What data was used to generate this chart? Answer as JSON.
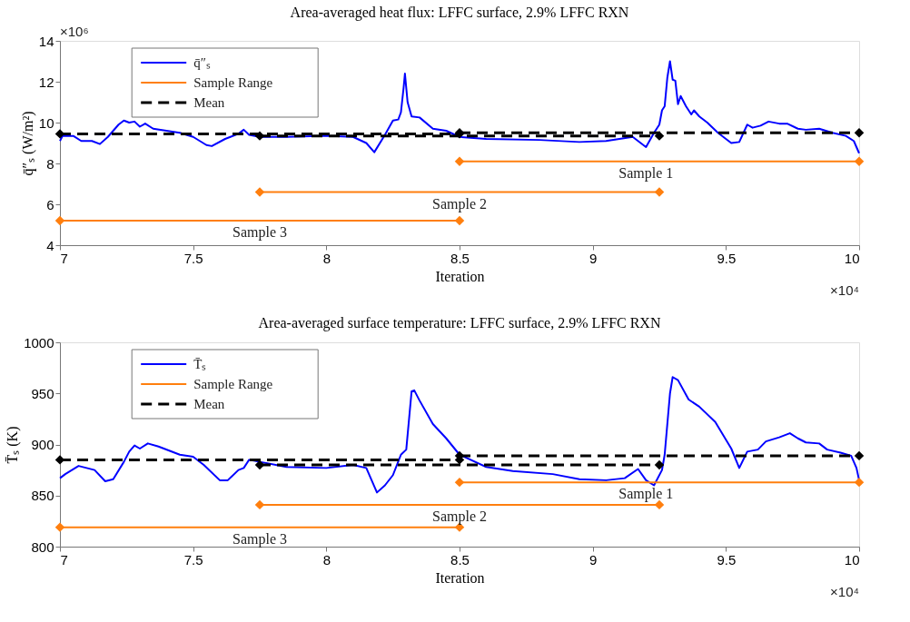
{
  "chart_data": [
    {
      "type": "line",
      "title": "Area-averaged heat flux: LFFC surface, 2.9% LFFC RXN",
      "xlabel": "Iteration",
      "ylabel": "q̄″ₛ (W/m²)",
      "xlim": [
        7,
        10
      ],
      "xticks": [
        7,
        7.5,
        8,
        8.5,
        9,
        9.5,
        10
      ],
      "ylim": [
        4,
        14
      ],
      "yticks": [
        4,
        6,
        8,
        10,
        12,
        14
      ],
      "legend": "top left",
      "annotations": [
        "×10⁶",
        "×10⁴",
        {
          "text": "Sample 1",
          "x": 9.2,
          "y": 8.1
        },
        {
          "text": "Sample 2",
          "x": 8.5,
          "y": 6.6
        },
        {
          "text": "Sample 3",
          "x": 7.75,
          "y": 5.2
        }
      ],
      "series": [
        {
          "name": "q̄″ₛ",
          "color": "#0000ff",
          "marker": "none",
          "line_style": "solid",
          "x": [
            7.0,
            7.01,
            7.05,
            7.08,
            7.12,
            7.15,
            7.18,
            7.22,
            7.24,
            7.26,
            7.28,
            7.3,
            7.32,
            7.35,
            7.45,
            7.5,
            7.55,
            7.57,
            7.62,
            7.67,
            7.69,
            7.71,
            7.75,
            7.85,
            8.0,
            8.1,
            8.15,
            8.18,
            8.22,
            8.25,
            8.27,
            8.28,
            8.29,
            8.295,
            8.305,
            8.32,
            8.35,
            8.4,
            8.45,
            8.5,
            8.6,
            8.8,
            8.95,
            9.05,
            9.15,
            9.2,
            9.23,
            9.25,
            9.26,
            9.27,
            9.28,
            9.29,
            9.3,
            9.31,
            9.32,
            9.33,
            9.35,
            9.37,
            9.38,
            9.4,
            9.43,
            9.47,
            9.52,
            9.55,
            9.58,
            9.6,
            9.63,
            9.66,
            9.7,
            9.73,
            9.77,
            9.8,
            9.85,
            9.9,
            9.95,
            9.98,
            10.0
          ],
          "values": [
            9.1,
            9.35,
            9.35,
            9.1,
            9.1,
            8.95,
            9.3,
            9.9,
            10.1,
            10.0,
            10.05,
            9.8,
            9.95,
            9.7,
            9.5,
            9.3,
            8.9,
            8.85,
            9.2,
            9.45,
            9.65,
            9.4,
            9.3,
            9.3,
            9.35,
            9.3,
            9.0,
            8.55,
            9.4,
            10.1,
            10.15,
            10.5,
            11.7,
            12.4,
            11.0,
            10.3,
            10.25,
            9.7,
            9.6,
            9.3,
            9.2,
            9.15,
            9.05,
            9.1,
            9.3,
            8.8,
            9.5,
            9.9,
            10.6,
            10.8,
            12.2,
            13.0,
            12.1,
            12.05,
            10.9,
            11.3,
            10.8,
            10.4,
            10.6,
            10.3,
            10.0,
            9.5,
            9.0,
            9.05,
            9.9,
            9.75,
            9.85,
            10.05,
            9.95,
            9.95,
            9.7,
            9.65,
            9.7,
            9.5,
            9.35,
            9.1,
            8.5
          ]
        },
        {
          "name": "Sample Range",
          "color": "#ff7f0e",
          "marker": "diamond",
          "line_style": "solid",
          "x": [
            8.5,
            10
          ],
          "values": [
            8.1,
            8.1
          ]
        },
        {
          "color": "#ff7f0e",
          "marker": "diamond",
          "line_style": "solid",
          "x": [
            7.75,
            9.25
          ],
          "values": [
            6.6,
            6.6
          ]
        },
        {
          "color": "#ff7f0e",
          "marker": "diamond",
          "line_style": "solid",
          "x": [
            7,
            8.5
          ],
          "values": [
            5.2,
            5.2
          ]
        },
        {
          "name": "Mean",
          "color": "#000000",
          "marker": "diamond",
          "line_style": "dashed",
          "x": [
            8.5,
            10
          ],
          "values": [
            9.5,
            9.5
          ]
        },
        {
          "color": "#000000",
          "marker": "diamond",
          "line_style": "dashed",
          "x": [
            7.75,
            9.25
          ],
          "values": [
            9.35,
            9.35
          ]
        },
        {
          "color": "#000000",
          "marker": "diamond",
          "line_style": "dashed",
          "x": [
            7,
            8.5
          ],
          "values": [
            9.45,
            9.45
          ]
        }
      ]
    },
    {
      "type": "line",
      "title": "Area-averaged surface temperature: LFFC surface, 2.9% LFFC RXN",
      "xlabel": "Iteration",
      "ylabel": "T̄ₛ (K)",
      "xlim": [
        7,
        10
      ],
      "xticks": [
        7,
        7.5,
        8,
        8.5,
        9,
        9.5,
        10
      ],
      "ylim": [
        800,
        1000
      ],
      "yticks": [
        800,
        850,
        900,
        950,
        1000
      ],
      "legend": "top left",
      "annotations": [
        "×10⁴",
        {
          "text": "Sample 1",
          "x": 9.2,
          "y": 863
        },
        {
          "text": "Sample 2",
          "x": 8.5,
          "y": 841
        },
        {
          "text": "Sample 3",
          "x": 7.75,
          "y": 819
        }
      ],
      "series": [
        {
          "name": "T̄ₛ",
          "color": "#0000ff",
          "marker": "none",
          "line_style": "solid",
          "x": [
            7.0,
            7.02,
            7.07,
            7.1,
            7.13,
            7.17,
            7.2,
            7.24,
            7.26,
            7.28,
            7.3,
            7.33,
            7.37,
            7.45,
            7.5,
            7.54,
            7.6,
            7.63,
            7.67,
            7.69,
            7.71,
            7.75,
            7.85,
            8.0,
            8.1,
            8.15,
            8.19,
            8.22,
            8.25,
            8.28,
            8.3,
            8.32,
            8.33,
            8.35,
            8.4,
            8.45,
            8.5,
            8.6,
            8.7,
            8.85,
            8.95,
            9.05,
            9.12,
            9.17,
            9.2,
            9.23,
            9.26,
            9.27,
            9.29,
            9.3,
            9.32,
            9.36,
            9.4,
            9.46,
            9.52,
            9.55,
            9.58,
            9.62,
            9.65,
            9.7,
            9.74,
            9.77,
            9.8,
            9.85,
            9.88,
            9.93,
            9.97,
            9.99,
            10.0
          ],
          "values": [
            867,
            871,
            879,
            877,
            875,
            864,
            866,
            883,
            893,
            899,
            896,
            901,
            898,
            890,
            888,
            880,
            865,
            865,
            875,
            877,
            885,
            883,
            878,
            877,
            880,
            877,
            853,
            860,
            870,
            890,
            895,
            952,
            953,
            943,
            920,
            906,
            890,
            878,
            874,
            871,
            866,
            865,
            867,
            876,
            865,
            860,
            875,
            890,
            950,
            966,
            963,
            944,
            937,
            922,
            896,
            877,
            893,
            895,
            903,
            907,
            911,
            906,
            902,
            901,
            895,
            892,
            889,
            877,
            865
          ]
        },
        {
          "name": "Sample Range",
          "color": "#ff7f0e",
          "marker": "diamond",
          "line_style": "solid",
          "x": [
            8.5,
            10
          ],
          "values": [
            863,
            863
          ]
        },
        {
          "color": "#ff7f0e",
          "marker": "diamond",
          "line_style": "solid",
          "x": [
            7.75,
            9.25
          ],
          "values": [
            841,
            841
          ]
        },
        {
          "color": "#ff7f0e",
          "marker": "diamond",
          "line_style": "solid",
          "x": [
            7,
            8.5
          ],
          "values": [
            819,
            819
          ]
        },
        {
          "name": "Mean",
          "color": "#000000",
          "marker": "diamond",
          "line_style": "dashed",
          "x": [
            8.5,
            10
          ],
          "values": [
            889,
            889
          ]
        },
        {
          "color": "#000000",
          "marker": "diamond",
          "line_style": "dashed",
          "x": [
            7.75,
            9.25
          ],
          "values": [
            880,
            880
          ]
        },
        {
          "color": "#000000",
          "marker": "diamond",
          "line_style": "dashed",
          "x": [
            7,
            8.5
          ],
          "values": [
            885,
            885
          ]
        }
      ]
    }
  ]
}
